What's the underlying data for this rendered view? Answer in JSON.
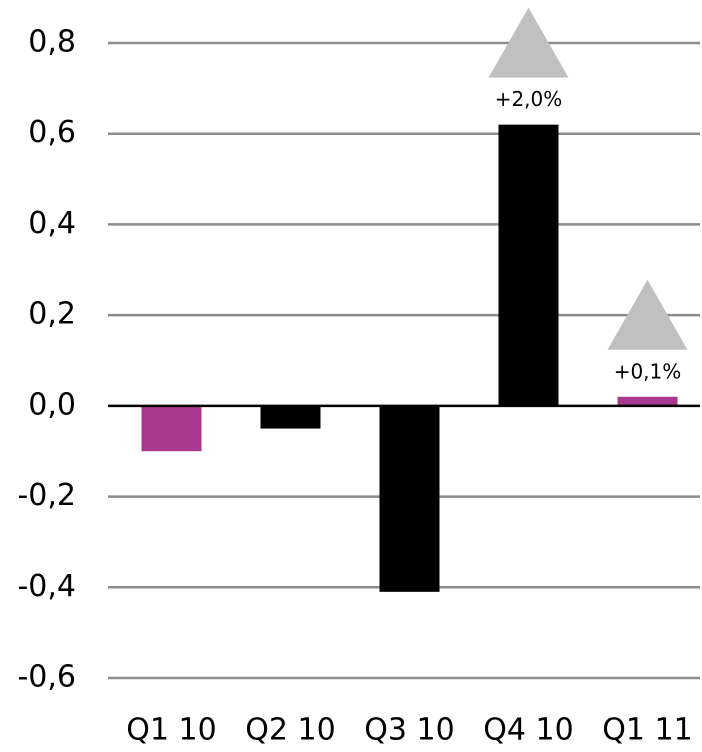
{
  "chart_data": {
    "type": "bar",
    "categories": [
      "Q1 10",
      "Q2 10",
      "Q3 10",
      "Q4 10",
      "Q1 11"
    ],
    "values": [
      -0.1,
      -0.05,
      -0.41,
      0.62,
      0.02
    ],
    "colors": [
      "#a8388f",
      "#000000",
      "#000000",
      "#000000",
      "#a8388f"
    ],
    "ylim": [
      -0.6,
      0.8
    ],
    "yticks": [
      {
        "value": -0.6,
        "label": "-0,6"
      },
      {
        "value": -0.4,
        "label": "-0,4"
      },
      {
        "value": -0.2,
        "label": "-0,2"
      },
      {
        "value": 0,
        "label": "0,0"
      },
      {
        "value": 0.2,
        "label": "0,2"
      },
      {
        "value": 0.4,
        "label": "0,4"
      },
      {
        "value": 0.6,
        "label": "0,6"
      },
      {
        "value": 0.8,
        "label": "0,8"
      }
    ],
    "grid": true,
    "annotations": [
      {
        "category": "Q4 10",
        "text": "+2,0%",
        "marker": "triangle-up",
        "color": "#c0c0c0"
      },
      {
        "category": "Q1 11",
        "text": "+0,1%",
        "marker": "triangle-up",
        "color": "#c0c0c0"
      }
    ]
  }
}
